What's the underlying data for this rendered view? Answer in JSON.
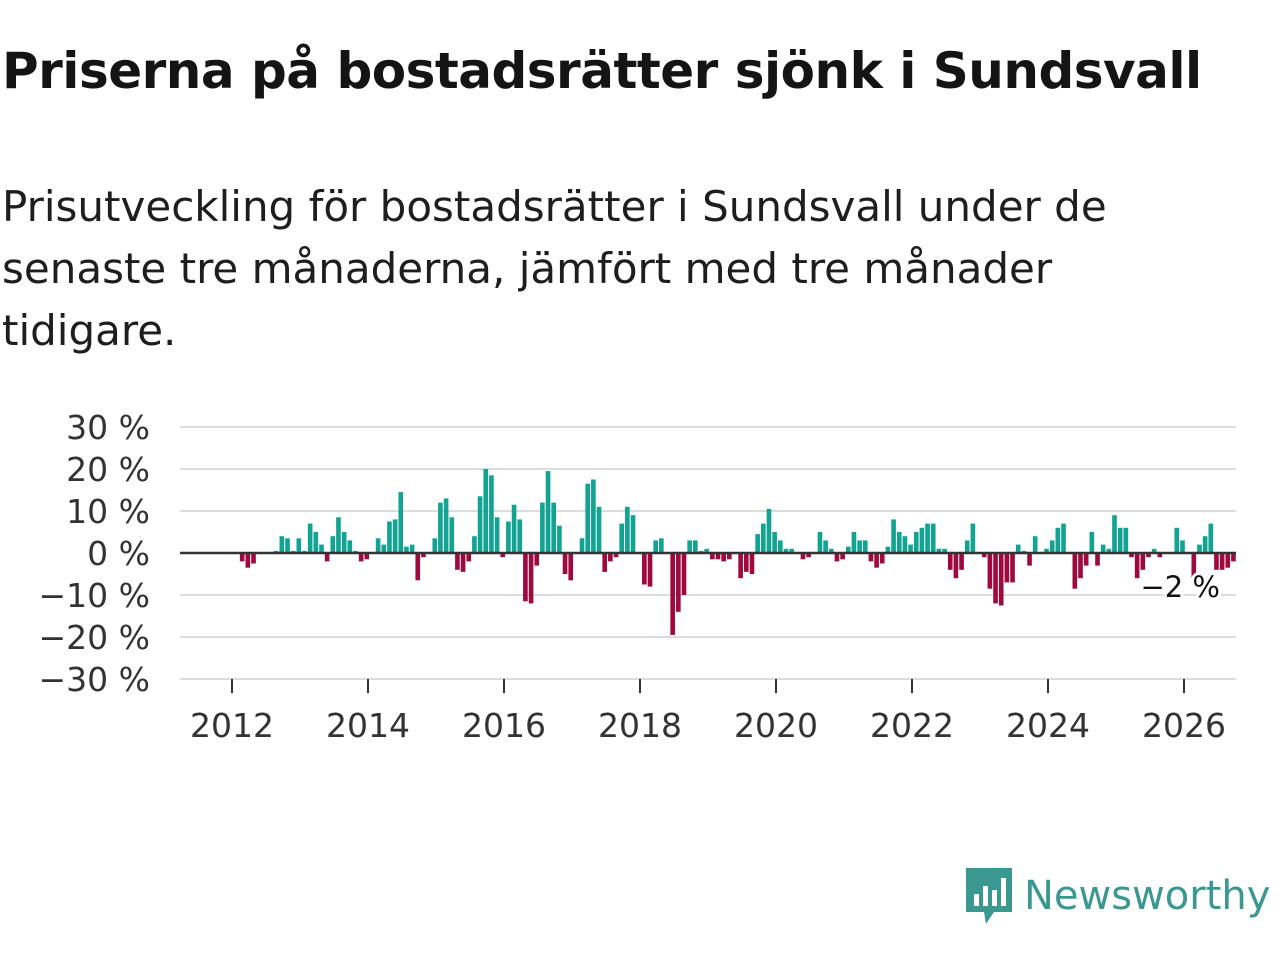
{
  "title": "Priserna på bostadsrätter sjönk i Sundsvall",
  "subtitle": "Prisutveckling för bostadsrätter i Sundsvall under de senaste tre månaderna, jämfört med tre månader tidigare.",
  "brand": "Newsworthy",
  "colors": {
    "positive": "#12a392",
    "negative": "#9e0a3f",
    "grid": "#dcdcdc",
    "zero": "#333333",
    "brand": "#3a9890"
  },
  "chart_data": {
    "type": "bar",
    "title": "Prisutveckling för bostadsrätter i Sundsvall",
    "xlabel": "",
    "ylabel": "",
    "x_start": 2011.4,
    "x_step": 0.0833,
    "ylim": [
      -30,
      30
    ],
    "y_ticks": [
      30,
      20,
      10,
      0,
      -10,
      -20,
      -30
    ],
    "y_tick_labels": [
      "30 %",
      "20 %",
      "10 %",
      "0 %",
      "−10 %",
      "−20 %",
      "−30 %"
    ],
    "x_ticks": [
      2012,
      2014,
      2016,
      2018,
      2020,
      2022,
      2024,
      2026
    ],
    "x_tick_labels": [
      "2012",
      "2014",
      "2016",
      "2018",
      "2020",
      "2022",
      "2024",
      "2026"
    ],
    "end_label": "−2 %",
    "values": [
      0,
      0,
      0,
      0,
      0,
      0,
      0,
      0,
      0,
      -2,
      -3.5,
      -2.5,
      0,
      0,
      0,
      0.5,
      4,
      3.5,
      0.5,
      3.5,
      0.5,
      7,
      5,
      2,
      -2,
      4,
      8.5,
      5,
      3,
      0.5,
      -2,
      -1.5,
      0,
      3.5,
      2,
      7.5,
      8,
      14.5,
      1.5,
      2,
      -6.5,
      -1,
      0,
      3.5,
      12,
      13,
      8.5,
      -4,
      -4.5,
      -2,
      4,
      13.5,
      20,
      18.5,
      8.5,
      -1,
      7.5,
      11.5,
      8,
      -11.5,
      -12,
      -3,
      12,
      19.5,
      12,
      6.5,
      -5,
      -6.5,
      0,
      3.5,
      16.5,
      17.5,
      11,
      -4.5,
      -2,
      -1,
      7,
      11,
      9,
      0,
      -7.5,
      -8,
      3,
      3.5,
      0,
      -19.5,
      -14,
      -10,
      3,
      3,
      0.5,
      1,
      -1.5,
      -1.5,
      -2,
      -1.5,
      0,
      -6,
      -4.5,
      -5,
      4.5,
      7,
      10.5,
      5,
      3,
      1,
      1,
      0,
      -1.5,
      -1,
      0,
      5,
      3,
      1,
      -2,
      -1.5,
      1.5,
      5,
      3,
      3,
      -2,
      -3.5,
      -2.5,
      1.5,
      8,
      5,
      4,
      2,
      5,
      6,
      7,
      7,
      1,
      1,
      -4,
      -6,
      -4,
      3,
      7,
      0,
      -1,
      -8.5,
      -12,
      -12.5,
      -7,
      -7,
      2,
      0.5,
      -3,
      4,
      0,
      1,
      3,
      6,
      7,
      0,
      -8.5,
      -6,
      -3,
      5,
      -3,
      2,
      1,
      9,
      6,
      6,
      -1,
      -6,
      -4,
      -1,
      1,
      -1,
      0,
      0,
      6,
      3,
      0,
      -7,
      2,
      4,
      7,
      -4,
      -4,
      -3.5,
      -2
    ]
  }
}
